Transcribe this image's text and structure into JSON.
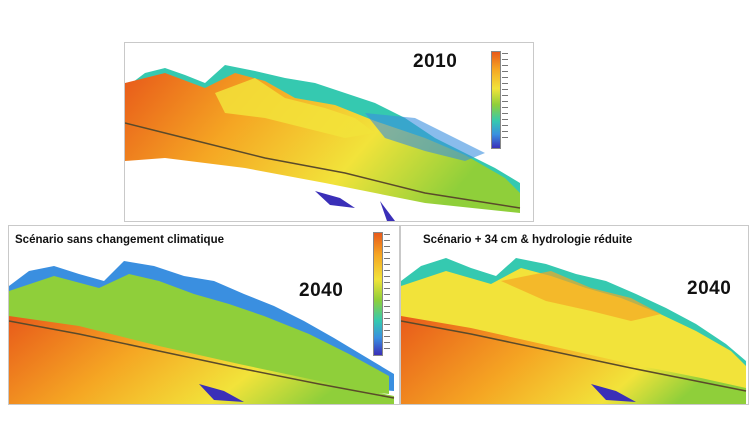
{
  "panels": [
    {
      "year": "2010",
      "scenario": ""
    },
    {
      "year": "2040",
      "scenario": "Scénario sans changement climatique"
    },
    {
      "year": "2040",
      "scenario": "Scénario + 34 cm & hydrologie réduite"
    }
  ],
  "colors": {
    "deep_high": "#e85a1a",
    "orange": "#f5a623",
    "yellow": "#f2e33a",
    "green": "#8fcf3a",
    "teal": "#35c9b0",
    "blue": "#3a8fe0",
    "navy": "#3a2fb8"
  }
}
